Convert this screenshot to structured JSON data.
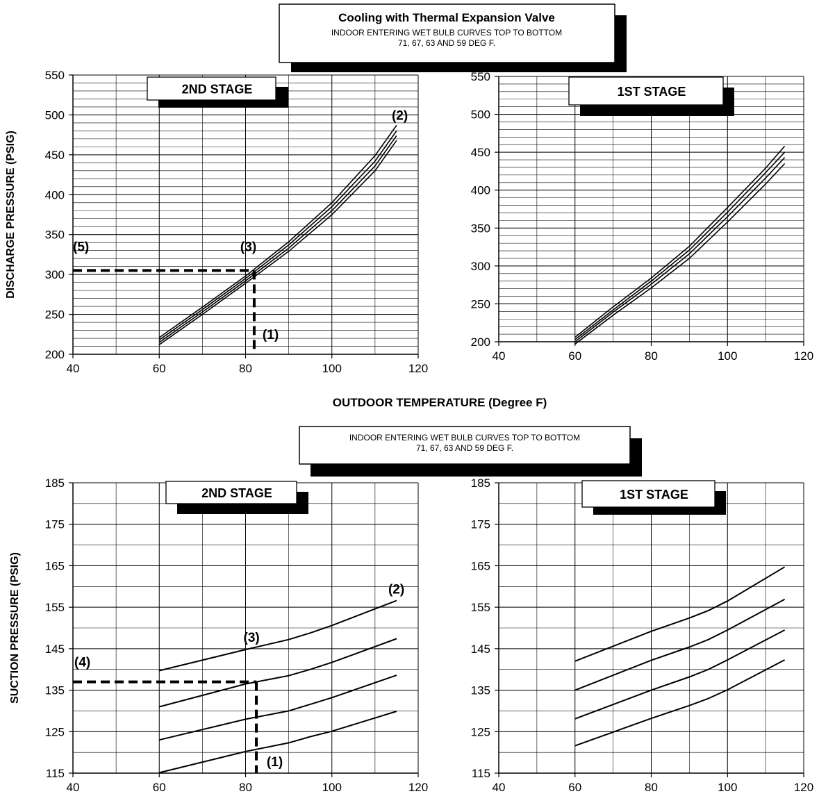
{
  "header": {
    "title": "Cooling with Thermal Expansion Valve",
    "line1": "INDOOR ENTERING WET BULB CURVES TOP TO BOTTOM",
    "line2": "71, 67, 63 AND 59 DEG F."
  },
  "middle_note": {
    "line1": "INDOOR ENTERING WET BULB CURVES TOP TO BOTTOM",
    "line2": "71, 67, 63 AND 59 DEG F."
  },
  "shared_xlabel": "OUTDOOR TEMPERATURE (Degree F)",
  "chart_data": [
    {
      "type": "line",
      "stage_label": "2ND STAGE",
      "ylabel": "DISCHARGE PRESSURE (PSIG)",
      "xlabel": "",
      "xlim": [
        40,
        120
      ],
      "ylim": [
        200,
        550
      ],
      "xticks": [
        40,
        60,
        80,
        100,
        120
      ],
      "yticks": [
        200,
        250,
        300,
        350,
        400,
        450,
        500,
        550
      ],
      "x": [
        60,
        70,
        80,
        90,
        100,
        110,
        115
      ],
      "series": [
        {
          "values": [
            221,
            259,
            298,
            341,
            390,
            449,
            487
          ]
        },
        {
          "values": [
            218,
            256,
            295,
            337,
            385,
            442,
            480
          ]
        },
        {
          "values": [
            215,
            253,
            292,
            333,
            380,
            436,
            474
          ]
        },
        {
          "values": [
            212,
            250,
            289,
            329,
            375,
            430,
            468
          ]
        }
      ],
      "annotations": [
        {
          "label": "(1)",
          "x": 82,
          "y": 200
        },
        {
          "label": "(2)",
          "x": 115,
          "y": 487
        },
        {
          "label": "(3)",
          "x": 82,
          "y": 305
        },
        {
          "label": "(5)",
          "x": 40,
          "y": 305
        }
      ],
      "guide": {
        "x": 82,
        "y": 305
      }
    },
    {
      "type": "line",
      "stage_label": "1ST STAGE",
      "ylabel": "",
      "xlabel": "",
      "xlim": [
        40,
        120
      ],
      "ylim": [
        200,
        550
      ],
      "xticks": [
        40,
        60,
        80,
        100,
        120
      ],
      "yticks": [
        200,
        250,
        300,
        350,
        400,
        450,
        500,
        550
      ],
      "x": [
        60,
        70,
        80,
        90,
        100,
        110,
        115
      ],
      "series": [
        {
          "values": [
            206,
            246,
            284,
            326,
            377,
            429,
            458
          ]
        },
        {
          "values": [
            203,
            242,
            280,
            321,
            371,
            423,
            450
          ]
        },
        {
          "values": [
            200,
            239,
            276,
            316,
            365,
            416,
            443
          ]
        },
        {
          "values": [
            197,
            235,
            271,
            310,
            358,
            408,
            435
          ]
        }
      ]
    },
    {
      "type": "line",
      "stage_label": "2ND STAGE",
      "ylabel": "SUCTION PRESSURE (PSIG)",
      "xlabel": "",
      "xlim": [
        40,
        120
      ],
      "ylim": [
        115,
        185
      ],
      "xticks": [
        40,
        60,
        80,
        100,
        120
      ],
      "yticks": [
        115,
        125,
        135,
        145,
        155,
        165,
        175,
        185
      ],
      "x": [
        60,
        80,
        90,
        95,
        100,
        115
      ],
      "series": [
        {
          "values": [
            139.7,
            144.8,
            147.2,
            148.8,
            150.6,
            156.6
          ]
        },
        {
          "values": [
            131.0,
            136.5,
            138.5,
            140.0,
            141.7,
            147.4
          ]
        },
        {
          "values": [
            123.0,
            128.0,
            130.0,
            131.6,
            133.2,
            138.6
          ]
        },
        {
          "values": [
            115.1,
            120.2,
            122.3,
            123.8,
            125.1,
            129.9
          ]
        }
      ],
      "annotations": [
        {
          "label": "(1)",
          "x": 82,
          "y": 115
        },
        {
          "label": "(2)",
          "x": 115,
          "y": 156.6
        },
        {
          "label": "(3)",
          "x": 80,
          "y": 145
        },
        {
          "label": "(4)",
          "x": 40,
          "y": 137
        }
      ],
      "guide": {
        "x": 82.5,
        "y": 137
      }
    },
    {
      "type": "line",
      "stage_label": "1ST STAGE",
      "ylabel": "",
      "xlabel": "",
      "xlim": [
        40,
        120
      ],
      "ylim": [
        115,
        185
      ],
      "xticks": [
        40,
        60,
        80,
        100,
        120
      ],
      "yticks": [
        115,
        125,
        135,
        145,
        155,
        165,
        175,
        185
      ],
      "x": [
        60,
        80,
        90,
        95,
        100,
        115
      ],
      "series": [
        {
          "values": [
            142.0,
            149.2,
            152.4,
            154.2,
            156.5,
            164.7
          ]
        },
        {
          "values": [
            135.0,
            142.2,
            145.4,
            147.2,
            149.5,
            156.9
          ]
        },
        {
          "values": [
            128.1,
            135.0,
            138.2,
            140.0,
            142.3,
            149.5
          ]
        },
        {
          "values": [
            121.6,
            128.2,
            131.3,
            133.0,
            135.1,
            142.3
          ]
        }
      ]
    }
  ]
}
